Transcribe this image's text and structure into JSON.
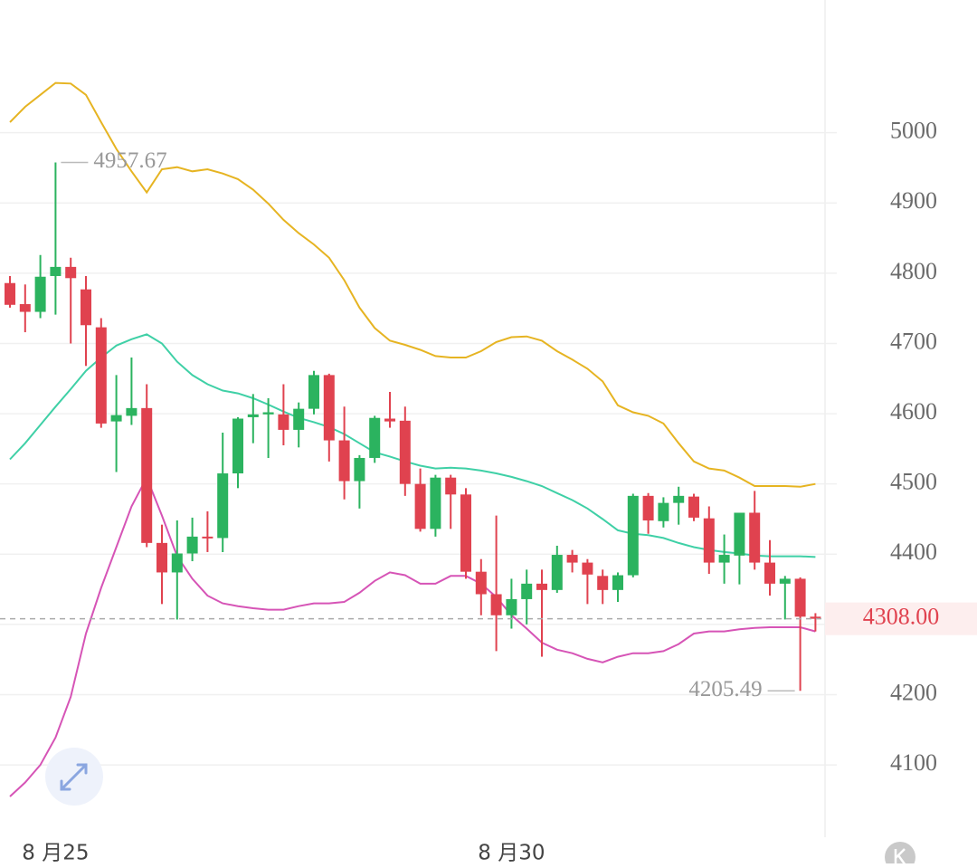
{
  "chart_data": {
    "type": "candlestick",
    "categories": [
      null,
      null,
      null,
      "8 月25",
      null,
      null,
      null,
      null,
      null,
      null,
      null,
      null,
      null,
      null,
      null,
      null,
      null,
      null,
      null,
      null,
      null,
      null,
      null,
      null,
      null,
      null,
      null,
      null,
      null,
      null,
      null,
      null,
      null,
      "8 月30",
      null,
      null,
      null,
      null,
      null,
      null,
      null,
      null,
      null,
      null,
      null,
      null,
      null,
      null,
      null,
      null,
      null,
      null,
      null,
      null
    ],
    "open": [
      4786,
      4756,
      4745,
      4796,
      4809,
      4777,
      4723,
      4589,
      4597,
      4608,
      4416,
      4374,
      4401,
      4425,
      4423,
      4515,
      4595,
      4599,
      4599,
      4577,
      4607,
      4655,
      4562,
      4504,
      4537,
      4593,
      4590,
      4500,
      4436,
      4509,
      4485,
      4375,
      4343,
      4313,
      4336,
      4358,
      4349,
      4399,
      4388,
      4369,
      4349,
      4370,
      4483,
      4447,
      4473,
      4482,
      4451,
      4388,
      4398,
      4459,
      4388,
      4358,
      4365,
      4311
    ],
    "high": [
      4796,
      4784,
      4826,
      4957.67,
      4822,
      4796,
      4736,
      4655,
      4680,
      4642,
      4442,
      4448,
      4452,
      4461,
      4573,
      4595,
      4628,
      4622,
      4642,
      4616,
      4661,
      4657,
      4610,
      4541,
      4597,
      4631,
      4610,
      4522,
      4513,
      4513,
      4494,
      4393,
      4455,
      4365,
      4378,
      4378,
      4412,
      4406,
      4393,
      4378,
      4374,
      4486,
      4487,
      4481,
      4496,
      4486,
      4468,
      4428,
      4459,
      4490,
      4420,
      4369,
      4367,
      4316
    ],
    "low": [
      4751,
      4716,
      4736,
      4741,
      4700,
      4668,
      4580,
      4517,
      4584,
      4410,
      4329,
      4307,
      4390,
      4403,
      4403,
      4494,
      4558,
      4537,
      4555,
      4552,
      4599,
      4532,
      4478,
      4465,
      4530,
      4580,
      4483,
      4432,
      4425,
      4436,
      4365,
      4313,
      4262,
      4294,
      4300,
      4254,
      4345,
      4374,
      4329,
      4329,
      4332,
      4367,
      4429,
      4438,
      4442,
      4447,
      4372,
      4358,
      4357,
      4378,
      4341,
      4307,
      4205.49,
      4290
    ],
    "close": [
      4755,
      4745,
      4795,
      4809,
      4793,
      4726,
      4586,
      4598,
      4608,
      4416,
      4374,
      4401,
      4425,
      4423,
      4515,
      4593,
      4599,
      4602,
      4577,
      4607,
      4655,
      4562,
      4504,
      4537,
      4594,
      4589,
      4500,
      4436,
      4509,
      4485,
      4375,
      4343,
      4313,
      4336,
      4358,
      4349,
      4399,
      4388,
      4371,
      4349,
      4370,
      4483,
      4448,
      4473,
      4483,
      4452,
      4388,
      4399,
      4459,
      4388,
      4358,
      4365,
      4311,
      4308
    ],
    "up_color": "#2bb35f",
    "down_color": "#e0424f",
    "series": [
      {
        "color": "#e6b422",
        "values": [
          5015,
          5037,
          5054,
          5071,
          5070,
          5054,
          5015,
          4977,
          4945,
          4915,
          4948,
          4951,
          4945,
          4948,
          4942,
          4934,
          4919,
          4899,
          4876,
          4857,
          4841,
          4822,
          4790,
          4751,
          4722,
          4704,
          4698,
          4691,
          4682,
          4680,
          4680,
          4689,
          4702,
          4709,
          4710,
          4704,
          4689,
          4677,
          4664,
          4646,
          4612,
          4602,
          4597,
          4586,
          4558,
          4532,
          4522,
          4519,
          4509,
          4497,
          4497,
          4497,
          4496,
          4500
        ]
      },
      {
        "color": "#3fd0a6",
        "values": [
          4535,
          4558,
          4584,
          4610,
          4635,
          4661,
          4680,
          4697,
          4706,
          4713,
          4700,
          4674,
          4655,
          4642,
          4633,
          4629,
          4622,
          4613,
          4603,
          4594,
          4588,
          4581,
          4571,
          4558,
          4545,
          4539,
          4532,
          4526,
          4522,
          4523,
          4522,
          4519,
          4515,
          4510,
          4504,
          4497,
          4487,
          4477,
          4465,
          4450,
          4434,
          4429,
          4427,
          4423,
          4416,
          4410,
          4406,
          4403,
          4401,
          4398,
          4397,
          4397,
          4397,
          4396
        ]
      },
      {
        "color": "#d654b6",
        "values": [
          4055,
          4075,
          4100,
          4139,
          4197,
          4287,
          4352,
          4410,
          4468,
          4509,
          4455,
          4397,
          4365,
          4341,
          4330,
          4326,
          4323,
          4321,
          4321,
          4326,
          4330,
          4330,
          4332,
          4345,
          4362,
          4374,
          4370,
          4358,
          4358,
          4369,
          4369,
          4358,
          4339,
          4313,
          4294,
          4274,
          4264,
          4259,
          4251,
          4246,
          4254,
          4259,
          4259,
          4262,
          4272,
          4287,
          4290,
          4290,
          4293,
          4295,
          4296,
          4296,
          4296,
          4290
        ]
      }
    ],
    "last_price": {
      "value": 4308,
      "label": "4308.00"
    },
    "ylim": [
      3997,
      5189
    ],
    "yticks": [
      4100,
      4200,
      4300,
      4400,
      4500,
      4600,
      4700,
      4800,
      4900,
      5000
    ],
    "grid": true
  }
}
